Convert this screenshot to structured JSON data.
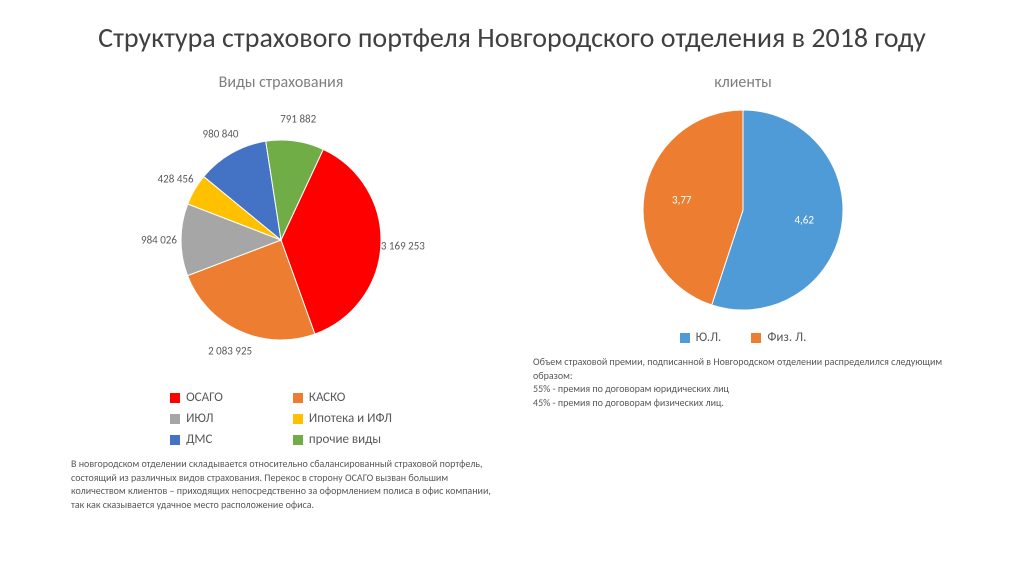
{
  "title": "Структура страхового портфеля Новгородского отделения в 2018 году",
  "chart_left": {
    "type": "pie",
    "title": "Виды страхования",
    "radius": 100,
    "start_angle_deg": -65,
    "background_color": "#ffffff",
    "label_fontsize": 11,
    "label_offset": 1.22,
    "slices": [
      {
        "label": "3 169 253",
        "value": 3169253,
        "color": "#ff0000"
      },
      {
        "label": "2 083 925",
        "value": 2083925,
        "color": "#ed7d31"
      },
      {
        "label": "984 026",
        "value": 984026,
        "color": "#a6a6a6"
      },
      {
        "label": "428 456",
        "value": 428456,
        "color": "#ffc000"
      },
      {
        "label": "980 840",
        "value": 980840,
        "color": "#4472c4"
      },
      {
        "label": "791 882",
        "value": 791882,
        "color": "#70ad47"
      }
    ],
    "legend": [
      {
        "name": "ОСАГО",
        "color": "#ff0000"
      },
      {
        "name": "КАСКО",
        "color": "#ed7d31"
      },
      {
        "name": "ИЮЛ",
        "color": "#a6a6a6"
      },
      {
        "name": "Ипотека и ИФЛ",
        "color": "#ffc000"
      },
      {
        "name": "ДМС",
        "color": "#4472c4"
      },
      {
        "name": "прочие виды",
        "color": "#70ad47"
      }
    ],
    "note": "В новгородском отделении складывается относительно сбалансированный страховой портфель, состоящий из различных видов страхования. Перекос в сторону ОСАГО вызван большим количеством клиентов – приходящих непосредственно за оформлением полиса в офис компании, так как сказывается удачное место расположение офиса."
  },
  "chart_right": {
    "type": "pie",
    "title": "клиенты",
    "radius": 100,
    "start_angle_deg": -90,
    "background_color": "#ffffff",
    "label_fontsize": 11,
    "label_offset": 0.62,
    "label_color": "#ffffff",
    "slices": [
      {
        "label": "4,62",
        "value": 4.62,
        "color": "#4f9bd7"
      },
      {
        "label": "3,77",
        "value": 3.77,
        "color": "#ed7d31"
      }
    ],
    "legend": [
      {
        "name": "Ю.Л.",
        "color": "#4f9bd7"
      },
      {
        "name": "Физ. Л.",
        "color": "#ed7d31"
      }
    ],
    "note": "Объем страховой премии, подписанной в Новгородском отделении распределился следующим образом:\n55% - премия по договорам юридических лиц\n45% - премия по договорам физических лиц."
  }
}
